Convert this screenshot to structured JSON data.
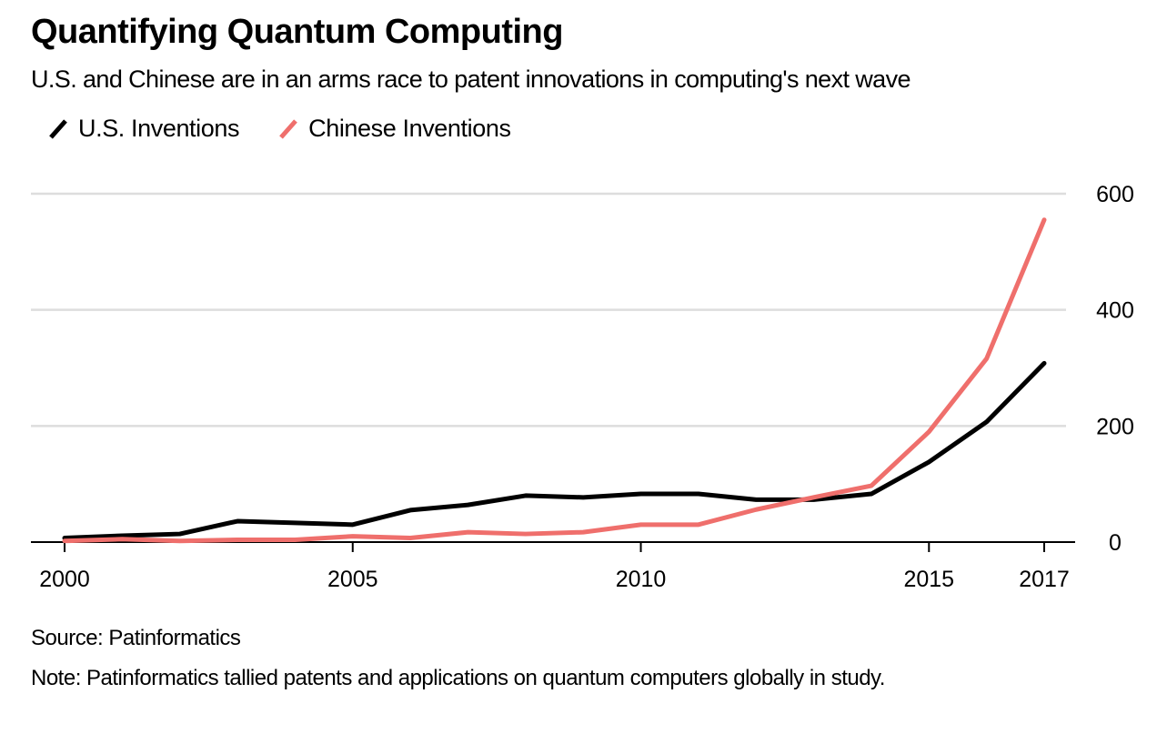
{
  "chart_data": {
    "type": "line",
    "title": "Quantifying Quantum Computing",
    "subtitle": "U.S. and Chinese are in an arms race to patent innovations in computing's next wave",
    "xlabel": "",
    "ylabel": "",
    "x": [
      2000,
      2001,
      2002,
      2003,
      2004,
      2005,
      2006,
      2007,
      2008,
      2009,
      2010,
      2011,
      2012,
      2013,
      2014,
      2015,
      2016,
      2017
    ],
    "series": [
      {
        "name": "U.S. Inventions",
        "color": "#000000",
        "values": [
          7,
          11,
          14,
          36,
          33,
          30,
          55,
          64,
          80,
          77,
          83,
          83,
          73,
          73,
          83,
          138,
          207,
          308
        ]
      },
      {
        "name": "Chinese Inventions",
        "color": "#ef6f6c",
        "values": [
          2,
          5,
          2,
          4,
          4,
          10,
          7,
          17,
          14,
          17,
          30,
          30,
          56,
          77,
          97,
          190,
          316,
          555
        ]
      }
    ],
    "xticks": [
      2000,
      2005,
      2010,
      2015,
      2017
    ],
    "xtick_labels": [
      "2000",
      "2005",
      "2010",
      "2015",
      "2017"
    ],
    "yticks": [
      0,
      200,
      400,
      600
    ],
    "ytick_labels": [
      "0",
      "200",
      "400",
      "600"
    ],
    "xlim": [
      2000,
      2017
    ],
    "ylim": [
      0,
      600
    ],
    "grid": true,
    "y_axis_position": "right",
    "legend_position": "top-left",
    "gridline_color": "#dddddd"
  },
  "footer": {
    "source": "Source: Patinformatics",
    "note": "Note: Patinformatics tallied patents and applications on quantum computers globally in study."
  }
}
